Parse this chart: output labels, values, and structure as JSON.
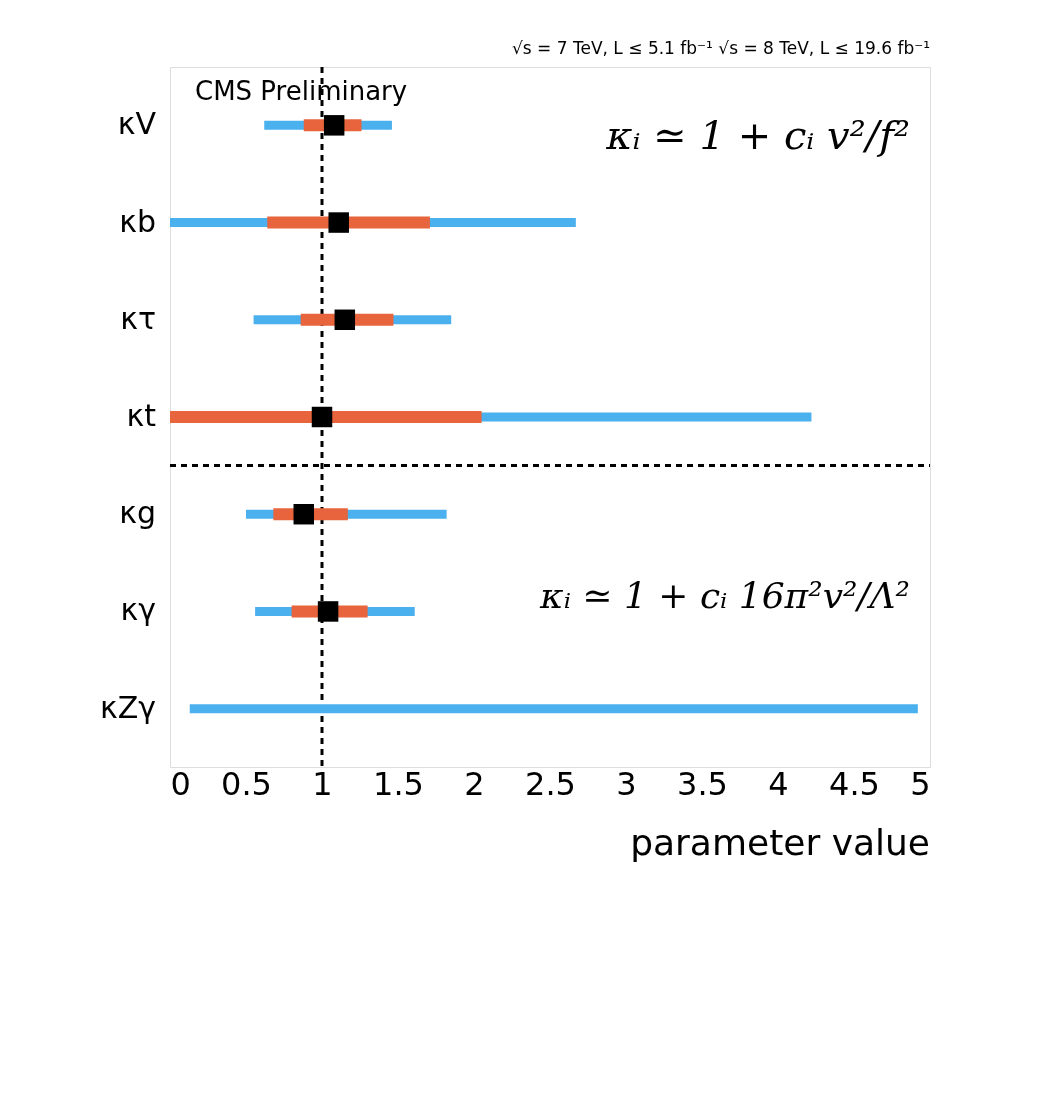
{
  "chart_data": {
    "type": "bar",
    "orientation": "horizontal",
    "xlabel": "parameter value",
    "categories": [
      "κV",
      "κb",
      "κτ",
      "κt",
      "κg",
      "κγ",
      "κZγ"
    ],
    "series": [
      {
        "color": "#4ab0ee",
        "base": [
          0.62,
          0,
          0.55,
          0,
          0.5,
          0.56,
          0.13
        ],
        "values": [
          0.84,
          2.67,
          1.3,
          4.22,
          1.32,
          1.05,
          4.79
        ]
      },
      {
        "color": "#e8643c",
        "base": [
          0.88,
          0.64,
          0.86,
          0,
          0.68,
          0.8,
          null
        ],
        "values": [
          0.38,
          1.07,
          0.61,
          2.05,
          0.49,
          0.5,
          null
        ]
      },
      {
        "type": "scatter",
        "color": "#000000",
        "marker": "square",
        "values": [
          1.08,
          1.11,
          1.15,
          1.0,
          0.88,
          1.04,
          null
        ]
      }
    ],
    "xlim": [
      0,
      5
    ],
    "xticks": [
      0,
      0.5,
      1,
      1.5,
      2,
      2.5,
      3,
      3.5,
      4,
      4.5,
      5
    ],
    "ref_lines": [
      {
        "axis": "x",
        "value": 1,
        "line_style": "dashed",
        "color": "#000000"
      }
    ],
    "annotations": [
      "√s = 7 TeV, L ≤ 5.1 fb⁻¹  √s = 8 TeV, L ≤ 19.6 fb⁻¹",
      "CMS Preliminary",
      "κᵢ ≃ 1 + cᵢ v²/f²",
      "κᵢ ≃ 1 + cᵢ 16π²v²/Λ²"
    ],
    "grid": false,
    "legend": false
  }
}
